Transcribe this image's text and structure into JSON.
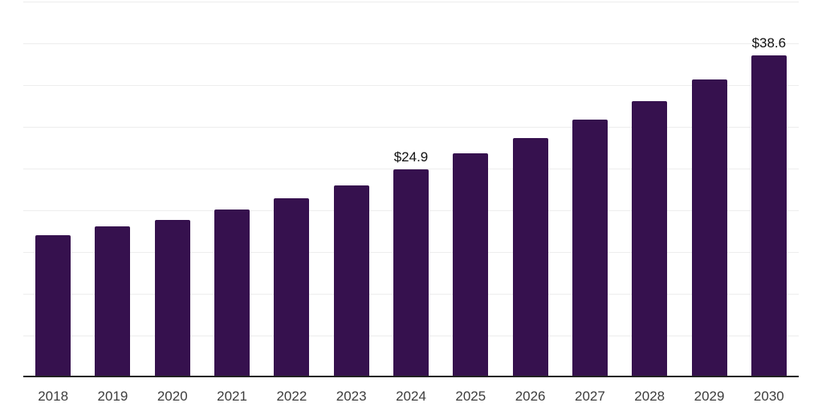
{
  "chart_data": {
    "type": "bar",
    "title": "",
    "xlabel": "",
    "ylabel": "",
    "categories": [
      "2018",
      "2019",
      "2020",
      "2021",
      "2022",
      "2023",
      "2024",
      "2025",
      "2026",
      "2027",
      "2028",
      "2029",
      "2030"
    ],
    "values": [
      17.0,
      18.1,
      18.8,
      20.1,
      21.4,
      23.0,
      24.9,
      26.8,
      28.7,
      30.9,
      33.1,
      35.7,
      38.6
    ],
    "data_labels": [
      "",
      "",
      "",
      "",
      "",
      "",
      "$24.9",
      "",
      "",
      "",
      "",
      "",
      "$38.6"
    ],
    "ylim": [
      0,
      45
    ],
    "gridline_step": 5,
    "grid": true,
    "legend": false,
    "colors": {
      "bar": "#36114e",
      "axis_line": "#222222",
      "gridline": "#ededed",
      "tick_label": "#3d3d3d",
      "value_label": "#111111",
      "background": "#ffffff"
    }
  }
}
